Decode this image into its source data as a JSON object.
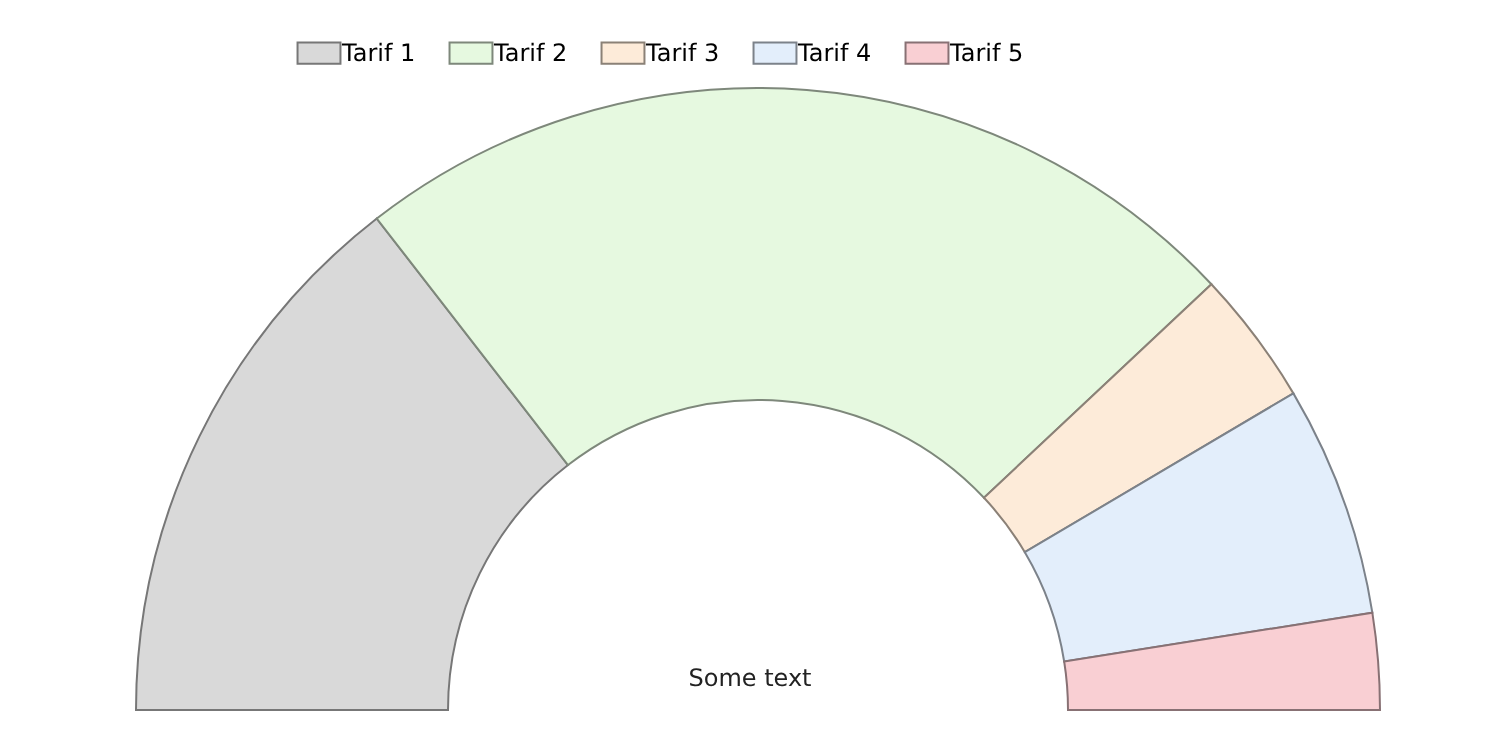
{
  "chart_data": {
    "type": "donut",
    "categories": [
      "Tarif 1",
      "Tarif 2",
      "Tarif 3",
      "Tarif 4",
      "Tarif 5"
    ],
    "values": [
      29,
      47,
      7,
      12,
      5
    ],
    "colors": [
      "#d9d9d9",
      "#e6f9e0",
      "#fdebd9",
      "#e3eefb",
      "#f9cfd3"
    ],
    "legend": "top",
    "annotations": [
      "Some text"
    ]
  }
}
